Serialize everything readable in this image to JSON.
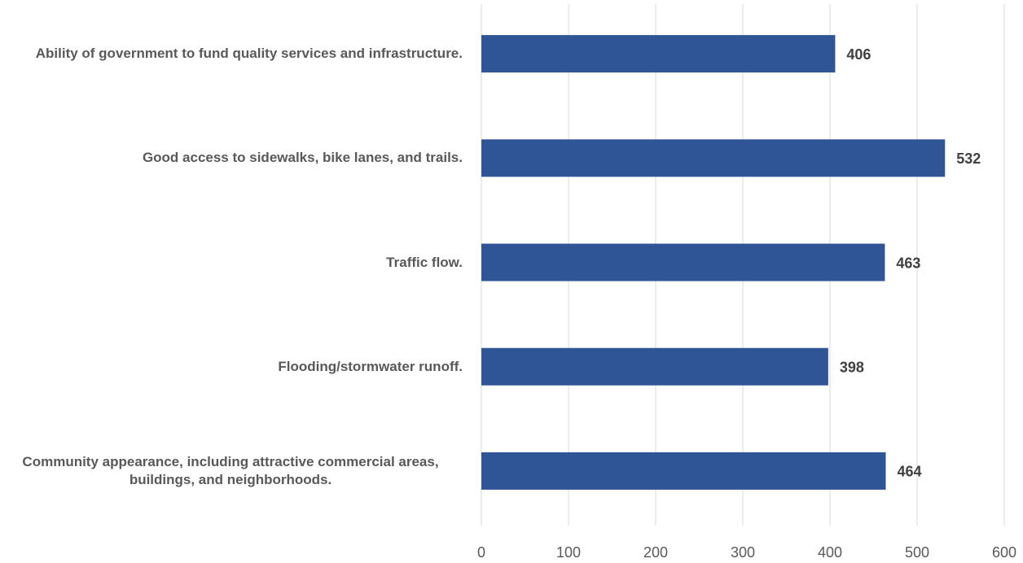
{
  "chart_data": {
    "type": "bar",
    "orientation": "horizontal",
    "categories": [
      "Ability of government to fund quality services and infrastructure.",
      "Good access to sidewalks, bike lanes, and trails.",
      "Traffic flow.",
      "Flooding/stormwater runoff.",
      "Community appearance, including attractive commercial areas, buildings, and neighborhoods."
    ],
    "values": [
      406,
      532,
      463,
      398,
      464
    ],
    "color": "#2f5597",
    "xlim": [
      0,
      600
    ],
    "xticks": [
      0,
      100,
      200,
      300,
      400,
      500,
      600
    ],
    "grid": true
  }
}
